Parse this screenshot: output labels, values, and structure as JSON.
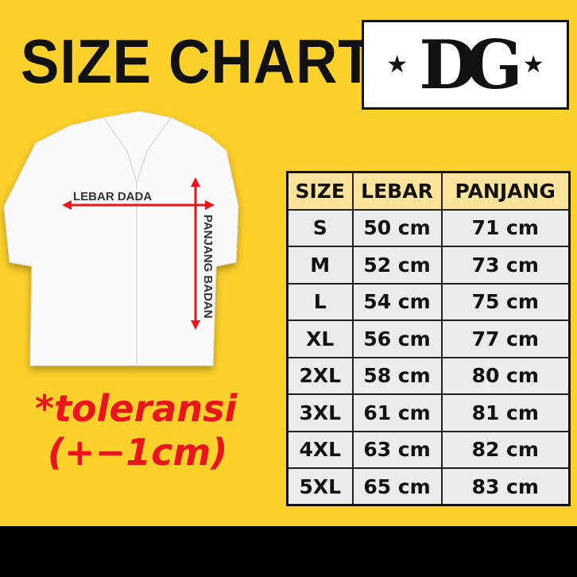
{
  "title": "SIZE CHART",
  "logo": {
    "text": "DG",
    "star": "★"
  },
  "diagram": {
    "width_label": "LEBAR DADA",
    "length_label": "PANJANG BADAN",
    "arrow_color": "#e8151b"
  },
  "tolerance": {
    "line1": "*toleransi",
    "line2": "(+−1cm)"
  },
  "table": {
    "headers": [
      "SIZE",
      "LEBAR",
      "PANJANG"
    ],
    "rows": [
      [
        "S",
        "50 cm",
        "71 cm"
      ],
      [
        "M",
        "52 cm",
        "73 cm"
      ],
      [
        "L",
        "54 cm",
        "75 cm"
      ],
      [
        "XL",
        "56 cm",
        "77 cm"
      ],
      [
        "2XL",
        "58 cm",
        "80 cm"
      ],
      [
        "3XL",
        "61 cm",
        "81 cm"
      ],
      [
        "4XL",
        "63 cm",
        "82 cm"
      ],
      [
        "5XL",
        "65 cm",
        "83 cm"
      ]
    ]
  },
  "colors": {
    "background": "#fdd12b",
    "header": "#fde49a",
    "accent": "#e8151b"
  }
}
